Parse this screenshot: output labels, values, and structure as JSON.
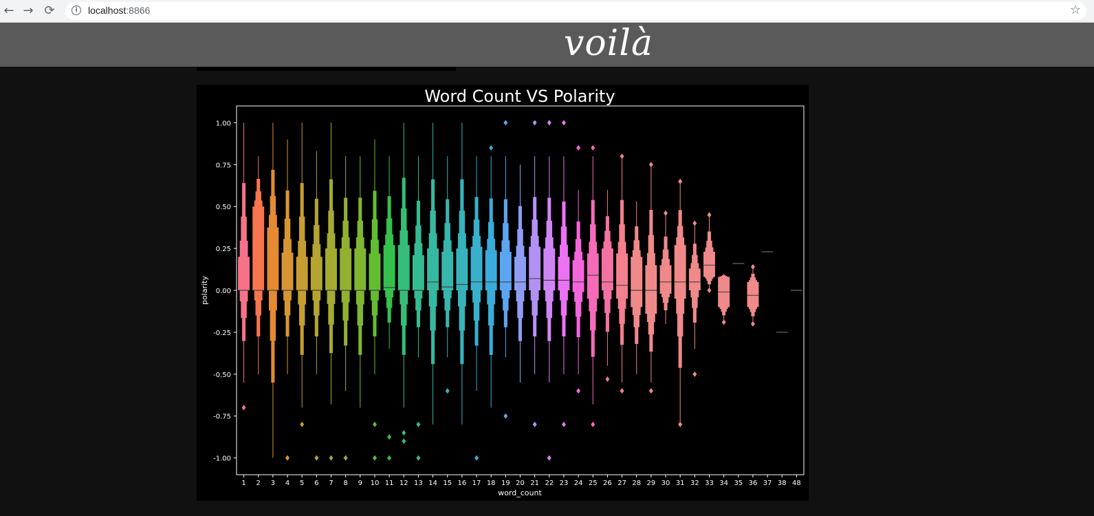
{
  "browser": {
    "back_icon": "←",
    "forward_icon": "→",
    "reload_icon": "⟳",
    "info_icon": "i",
    "url_host": "localhost",
    "url_port": ":8866",
    "bookmark_icon": "☆"
  },
  "header": {
    "logo_text": "voilà"
  },
  "chart_data": {
    "type": "boxen",
    "title": "Word Count VS Polarity",
    "xlabel": "word_count",
    "ylabel": "polarity",
    "ylim": [
      -1.1,
      1.1
    ],
    "yticks": [
      "1.00",
      "0.75",
      "0.50",
      "0.25",
      "0.00",
      "-0.25",
      "-0.50",
      "-0.75",
      "-1.00"
    ],
    "categories": [
      "1",
      "2",
      "3",
      "4",
      "5",
      "6",
      "7",
      "8",
      "9",
      "10",
      "11",
      "12",
      "13",
      "14",
      "15",
      "16",
      "17",
      "18",
      "19",
      "20",
      "21",
      "22",
      "23",
      "24",
      "25",
      "26",
      "27",
      "28",
      "29",
      "30",
      "31",
      "32",
      "33",
      "34",
      "35",
      "36",
      "37",
      "38",
      "48"
    ],
    "colors": [
      "#f77189",
      "#f7754f",
      "#e38a32",
      "#d89632",
      "#c59d31",
      "#b4a431",
      "#a3ab31",
      "#93b031",
      "#80b631",
      "#62bd31",
      "#34c14c",
      "#34be79",
      "#35bb91",
      "#36b8a1",
      "#37b6ae",
      "#38b3bc",
      "#39b0cb",
      "#3aacdb",
      "#5ca5f1",
      "#8f9ef4",
      "#b391f4",
      "#cf86f4",
      "#ec72f4",
      "#f566dc",
      "#f56bb8",
      "#f472a3",
      "#f47f8e",
      "#f0898a"
    ],
    "boxes": [
      {
        "cat": "1",
        "q1": 0.0,
        "median": 0.0,
        "q3": 0.2,
        "lo": -0.55,
        "hi": 1.0,
        "outliers": [
          -0.7
        ]
      },
      {
        "cat": "2",
        "q1": 0.0,
        "median": 0.0,
        "q3": 0.5,
        "lo": -0.5,
        "hi": 0.8,
        "outliers": []
      },
      {
        "cat": "3",
        "q1": 0.0,
        "median": 0.0,
        "q3": 0.375,
        "lo": -1.0,
        "hi": 1.0,
        "outliers": []
      },
      {
        "cat": "4",
        "q1": 0.0,
        "median": 0.0,
        "q3": 0.225,
        "lo": -0.5,
        "hi": 0.9,
        "outliers": [
          -1.0
        ]
      },
      {
        "cat": "5",
        "q1": 0.0,
        "median": 0.0,
        "q3": 0.2,
        "lo": -0.7,
        "hi": 1.0,
        "outliers": [
          -0.8
        ]
      },
      {
        "cat": "6",
        "q1": 0.0,
        "median": 0.0,
        "q3": 0.2,
        "lo": -0.5,
        "hi": 0.83,
        "outliers": [
          -1.0
        ]
      },
      {
        "cat": "7",
        "q1": 0.0,
        "median": 0.0,
        "q3": 0.25,
        "lo": -0.68,
        "hi": 1.0,
        "outliers": [
          -1.0
        ]
      },
      {
        "cat": "8",
        "q1": 0.0,
        "median": 0.0,
        "q3": 0.25,
        "lo": -0.6,
        "hi": 0.8,
        "outliers": [
          -1.0
        ]
      },
      {
        "cat": "9",
        "q1": 0.0,
        "median": 0.0,
        "q3": 0.25,
        "lo": -0.7,
        "hi": 0.8,
        "outliers": []
      },
      {
        "cat": "10",
        "q1": 0.0,
        "median": 0.0,
        "q3": 0.22,
        "lo": -0.5,
        "hi": 0.9,
        "outliers": [
          -0.8,
          -1.0
        ]
      },
      {
        "cat": "11",
        "q1": 0.0,
        "median": 0.017,
        "q3": 0.27,
        "lo": -0.35,
        "hi": 0.8,
        "outliers": [
          -0.875,
          -1.0
        ]
      },
      {
        "cat": "12",
        "q1": 0.0,
        "median": 0.0,
        "q3": 0.27,
        "lo": -0.7,
        "hi": 1.0,
        "outliers": [
          -0.85,
          -0.9
        ]
      },
      {
        "cat": "13",
        "q1": 0.0,
        "median": 0.0,
        "q3": 0.21,
        "lo": -0.4,
        "hi": 0.8,
        "outliers": [
          -0.8,
          -1.0
        ]
      },
      {
        "cat": "14",
        "q1": 0.0,
        "median": 0.05,
        "q3": 0.25,
        "lo": -0.8,
        "hi": 1.0,
        "outliers": []
      },
      {
        "cat": "15",
        "q1": 0.0,
        "median": 0.02,
        "q3": 0.23,
        "lo": -0.4,
        "hi": 0.8,
        "outliers": [
          -0.6
        ]
      },
      {
        "cat": "16",
        "q1": 0.0,
        "median": 0.035,
        "q3": 0.25,
        "lo": -0.8,
        "hi": 1.0,
        "outliers": []
      },
      {
        "cat": "17",
        "q1": 0.0,
        "median": 0.05,
        "q3": 0.26,
        "lo": -0.6,
        "hi": 0.8,
        "outliers": [
          -1.0
        ]
      },
      {
        "cat": "18",
        "q1": 0.0,
        "median": 0.05,
        "q3": 0.24,
        "lo": -0.7,
        "hi": 0.8,
        "outliers": [
          0.85
        ]
      },
      {
        "cat": "19",
        "q1": 0.0,
        "median": 0.05,
        "q3": 0.23,
        "lo": -0.4,
        "hi": 0.8,
        "outliers": [
          1.0,
          -0.75
        ]
      },
      {
        "cat": "20",
        "q1": 0.0,
        "median": 0.05,
        "q3": 0.2,
        "lo": -0.55,
        "hi": 0.75,
        "outliers": []
      },
      {
        "cat": "21",
        "q1": 0.0,
        "median": 0.07,
        "q3": 0.26,
        "lo": -0.5,
        "hi": 0.8,
        "outliers": [
          1.0,
          -0.8
        ]
      },
      {
        "cat": "22",
        "q1": 0.0,
        "median": 0.06,
        "q3": 0.25,
        "lo": -0.55,
        "hi": 0.8,
        "outliers": [
          1.0,
          -1.0
        ]
      },
      {
        "cat": "23",
        "q1": 0.0,
        "median": 0.06,
        "q3": 0.2,
        "lo": -0.5,
        "hi": 0.8,
        "outliers": [
          1.0,
          -0.8
        ]
      },
      {
        "cat": "24",
        "q1": -0.01,
        "median": 0.05,
        "q3": 0.18,
        "lo": -0.5,
        "hi": 0.6,
        "outliers": [
          0.85,
          -0.6
        ]
      },
      {
        "cat": "25",
        "q1": -0.05,
        "median": 0.09,
        "q3": 0.22,
        "lo": -0.68,
        "hi": 0.8,
        "outliers": [
          0.85,
          -0.8
        ]
      },
      {
        "cat": "26",
        "q1": 0.0,
        "median": 0.05,
        "q3": 0.25,
        "lo": -0.45,
        "hi": 0.6,
        "outliers": [
          -0.53
        ]
      },
      {
        "cat": "27",
        "q1": -0.05,
        "median": 0.03,
        "q3": 0.22,
        "lo": -0.55,
        "hi": 0.8,
        "outliers": [
          0.8,
          -0.6
        ]
      },
      {
        "cat": "28",
        "q1": -0.1,
        "median": 0.0,
        "q3": 0.2,
        "lo": -0.5,
        "hi": 0.53,
        "outliers": []
      },
      {
        "cat": "29",
        "q1": -0.14,
        "median": 0.0,
        "q3": 0.15,
        "lo": -0.55,
        "hi": 0.75,
        "outliers": [
          0.75,
          -0.6
        ]
      },
      {
        "cat": "30",
        "q1": -0.02,
        "median": 0.05,
        "q3": 0.15,
        "lo": -0.2,
        "hi": 0.46,
        "outliers": [
          0.46
        ]
      },
      {
        "cat": "31",
        "q1": -0.05,
        "median": 0.05,
        "q3": 0.27,
        "lo": -0.8,
        "hi": 0.65,
        "outliers": [
          0.65,
          -0.8
        ]
      },
      {
        "cat": "32",
        "q1": 0.0,
        "median": 0.05,
        "q3": 0.13,
        "lo": -0.35,
        "hi": 0.4,
        "outliers": [
          0.4,
          -0.5
        ]
      },
      {
        "cat": "33",
        "q1": 0.08,
        "median": 0.15,
        "q3": 0.23,
        "lo": 0.0,
        "hi": 0.45,
        "outliers": [
          0.45,
          0.0
        ]
      },
      {
        "cat": "34",
        "q1": -0.1,
        "median": -0.01,
        "q3": 0.08,
        "lo": -0.19,
        "hi": 0.1,
        "outliers": [
          -0.19
        ]
      },
      {
        "cat": "35",
        "q1": 0.16,
        "median": 0.16,
        "q3": 0.16,
        "lo": 0.16,
        "hi": 0.16,
        "outliers": []
      },
      {
        "cat": "36",
        "q1": -0.1,
        "median": -0.03,
        "q3": 0.05,
        "lo": -0.2,
        "hi": 0.14,
        "outliers": [
          0.14,
          -0.2
        ]
      },
      {
        "cat": "37",
        "q1": 0.23,
        "median": 0.23,
        "q3": 0.23,
        "lo": 0.23,
        "hi": 0.23,
        "outliers": []
      },
      {
        "cat": "38",
        "q1": -0.25,
        "median": -0.25,
        "q3": -0.25,
        "lo": -0.25,
        "hi": -0.25,
        "outliers": []
      },
      {
        "cat": "48",
        "q1": 0.0,
        "median": 0.0,
        "q3": 0.0,
        "lo": 0.0,
        "hi": 0.0,
        "outliers": []
      }
    ]
  }
}
